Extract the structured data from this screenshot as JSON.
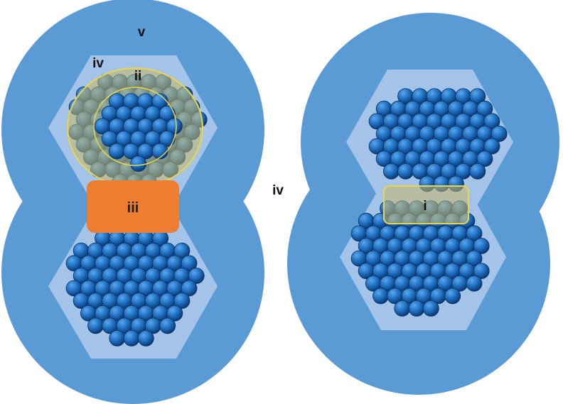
{
  "labels": {
    "v": "v",
    "iv_top_left": "iv",
    "ii": "ii",
    "iii": "iii",
    "iv_middle": "iv",
    "i": "i"
  },
  "colors": {
    "background": "#ffffff",
    "outer_region": "#5b9bd5",
    "hexagon": "#a3c4e8",
    "sphere_fill": "#1f6fc0",
    "sphere_light": "#5aa6ee",
    "sphere_dark": "#0a3a78",
    "sphere_outline": "#0d2f5e",
    "neck_block": "#ed7d31",
    "highlight_fill": "#c9b86a",
    "highlight_stroke": "#e8d44d"
  }
}
